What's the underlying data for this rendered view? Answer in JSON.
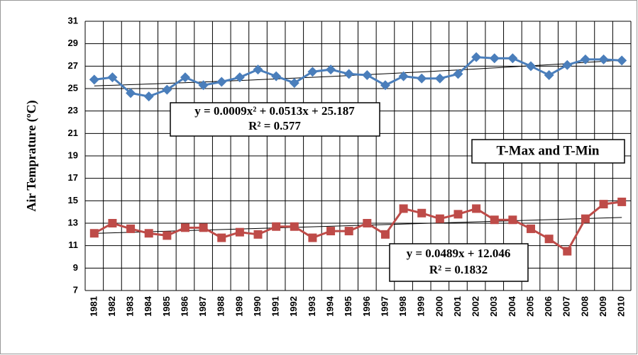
{
  "chart_data": {
    "type": "line",
    "y_label": "Air Temprature (ºC)",
    "annotation": "T-Max and T-Min",
    "categories": [
      "1981",
      "1982",
      "1983",
      "1984",
      "1985",
      "1986",
      "1987",
      "1988",
      "1989",
      "1990",
      "1991",
      "1992",
      "1993",
      "1994",
      "1995",
      "1996",
      "1997",
      "1998",
      "1999",
      "2000",
      "2001",
      "2002",
      "2003",
      "2004",
      "2005",
      "2006",
      "2007",
      "2008",
      "2009",
      "2010"
    ],
    "series": [
      {
        "color": "#4a7ebb",
        "marker": "diamond",
        "values": [
          25.8,
          26.0,
          24.6,
          24.3,
          24.9,
          26.0,
          25.3,
          25.6,
          26.0,
          26.7,
          26.1,
          25.5,
          26.5,
          26.7,
          26.3,
          26.2,
          25.3,
          26.1,
          25.9,
          25.9,
          26.3,
          27.8,
          27.7,
          27.7,
          27.0,
          26.2,
          27.1,
          27.6,
          27.6,
          27.5
        ]
      },
      {
        "color": "#be4b48",
        "marker": "square",
        "values": [
          12.1,
          13.0,
          12.5,
          12.1,
          11.9,
          12.6,
          12.6,
          11.7,
          12.2,
          12.0,
          12.7,
          12.7,
          11.7,
          12.3,
          12.3,
          13.0,
          12.0,
          14.3,
          13.9,
          13.4,
          13.8,
          14.3,
          13.3,
          13.3,
          12.5,
          11.6,
          10.5,
          13.4,
          14.7,
          14.9
        ]
      }
    ],
    "trendlines": [
      {
        "coefficients": [
          0.0009,
          0.0513,
          25.187
        ],
        "equation": "y = 0.0009x² + 0.0513x + 25.187",
        "r2": "R² = 0.577"
      },
      {
        "coefficients": [
          0,
          0.0489,
          12.046
        ],
        "equation": "y = 0.0489x + 12.046",
        "r2": "R² = 0.1832"
      }
    ],
    "ylim": [
      7,
      31
    ],
    "yticks": [
      7,
      9,
      11,
      13,
      15,
      17,
      19,
      21,
      23,
      25,
      27,
      29,
      31
    ],
    "grid": true
  }
}
